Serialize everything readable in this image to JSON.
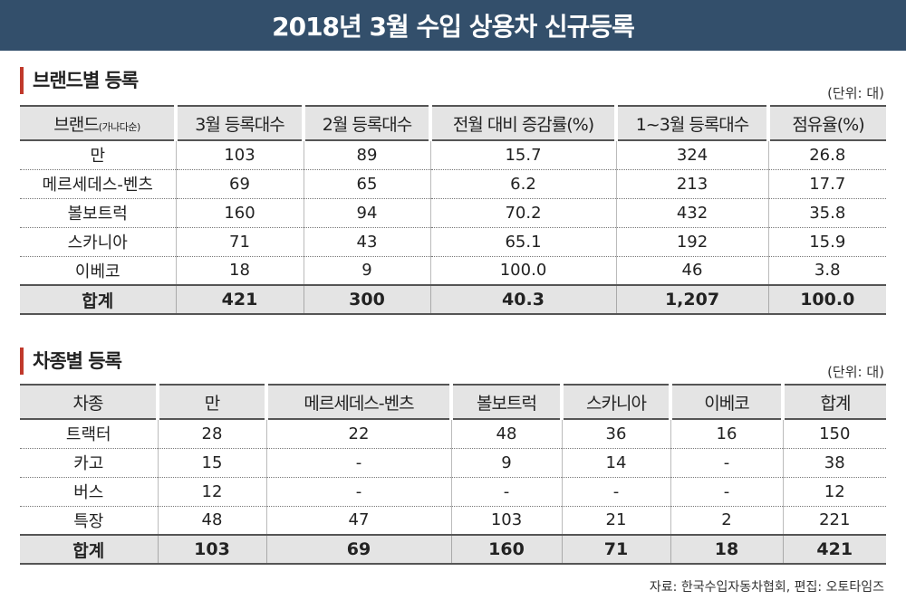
{
  "title": "2018년 3월 수입 상용차 신규등록",
  "brand_section": {
    "title": "브랜드별 등록",
    "unit": "(단위: 대)",
    "headers": {
      "brand": "브랜드",
      "brand_sub": "(가나다순)",
      "march": "3월 등록대수",
      "feb": "2월 등록대수",
      "change": "전월 대비 증감률(%)",
      "ytd": "1~3월 등록대수",
      "share": "점유율(%)"
    },
    "rows": [
      {
        "brand": "만",
        "march": "103",
        "feb": "89",
        "change": "15.7",
        "ytd": "324",
        "share": "26.8"
      },
      {
        "brand": "메르세데스-벤츠",
        "march": "69",
        "feb": "65",
        "change": "6.2",
        "ytd": "213",
        "share": "17.7"
      },
      {
        "brand": "볼보트럭",
        "march": "160",
        "feb": "94",
        "change": "70.2",
        "ytd": "432",
        "share": "35.8"
      },
      {
        "brand": "스카니아",
        "march": "71",
        "feb": "43",
        "change": "65.1",
        "ytd": "192",
        "share": "15.9"
      },
      {
        "brand": "이베코",
        "march": "18",
        "feb": "9",
        "change": "100.0",
        "ytd": "46",
        "share": "3.8"
      }
    ],
    "total": {
      "brand": "합계",
      "march": "421",
      "feb": "300",
      "change": "40.3",
      "ytd": "1,207",
      "share": "100.0"
    }
  },
  "type_section": {
    "title": "차종별 등록",
    "unit": "(단위: 대)",
    "headers": {
      "type": "차종",
      "man": "만",
      "benz": "메르세데스-벤츠",
      "volvo": "볼보트럭",
      "scania": "스카니아",
      "iveco": "이베코",
      "total": "합계"
    },
    "rows": [
      {
        "type": "트랙터",
        "man": "28",
        "benz": "22",
        "volvo": "48",
        "scania": "36",
        "iveco": "16",
        "total": "150"
      },
      {
        "type": "카고",
        "man": "15",
        "benz": "-",
        "volvo": "9",
        "scania": "14",
        "iveco": "-",
        "total": "38"
      },
      {
        "type": "버스",
        "man": "12",
        "benz": "-",
        "volvo": "-",
        "scania": "-",
        "iveco": "-",
        "total": "12"
      },
      {
        "type": "특장",
        "man": "48",
        "benz": "47",
        "volvo": "103",
        "scania": "21",
        "iveco": "2",
        "total": "221"
      }
    ],
    "total": {
      "type": "합계",
      "man": "103",
      "benz": "69",
      "volvo": "160",
      "scania": "71",
      "iveco": "18",
      "total": "421"
    }
  },
  "source": "자료: 한국수입자동차협회,  편집: 오토타임즈",
  "colors": {
    "title_bar": "#334f6b",
    "accent": "#c0392b",
    "header_bg": "#e4e4e4"
  }
}
